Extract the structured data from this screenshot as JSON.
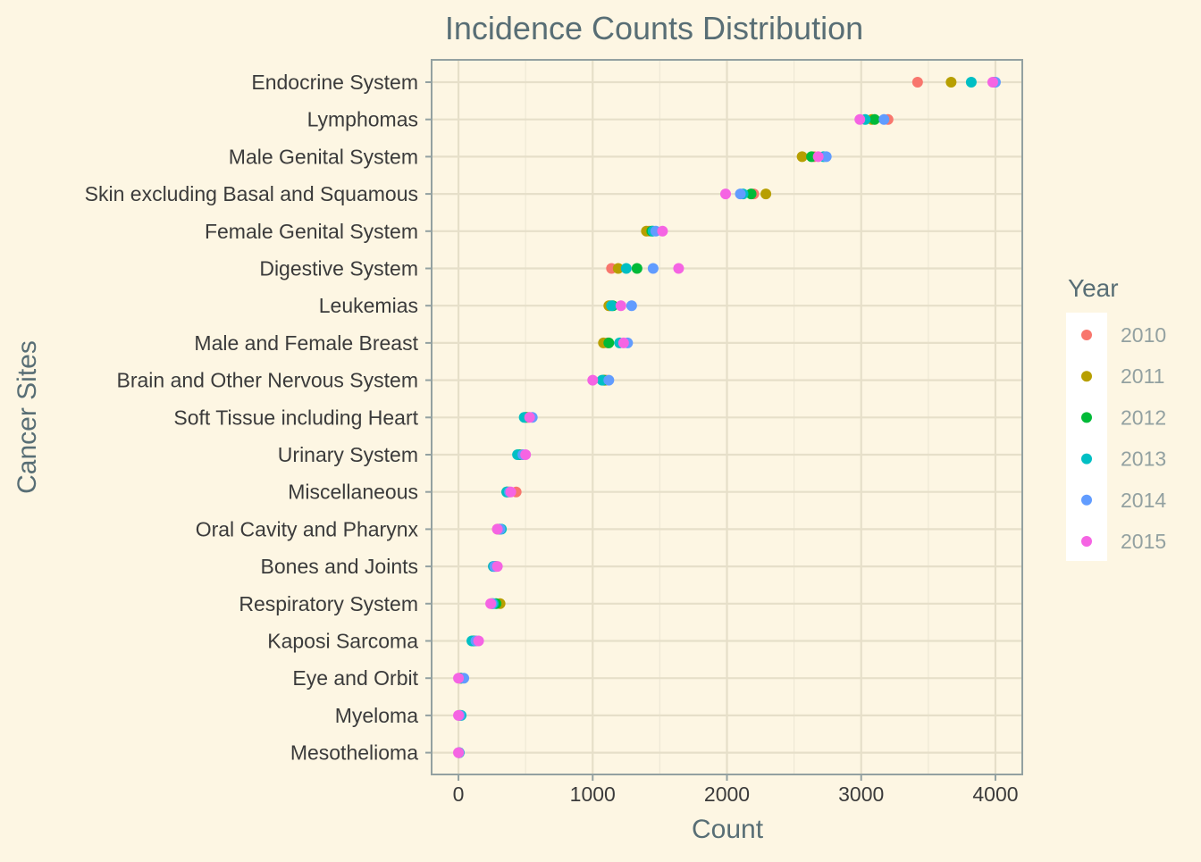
{
  "chart_data": {
    "type": "scatter",
    "title": "Incidence Counts Distribution",
    "xlabel": "Count",
    "ylabel": "Cancer Sites",
    "xlim": [
      -200,
      4200
    ],
    "xticks": [
      0,
      1000,
      2000,
      3000,
      4000
    ],
    "grid": true,
    "legend": {
      "title": "Year",
      "placement": "right"
    },
    "categories": [
      "Endocrine System",
      "Lymphomas",
      "Male Genital System",
      "Skin excluding Basal and Squamous",
      "Female Genital System",
      "Digestive System",
      "Leukemias",
      "Male and Female Breast",
      "Brain and Other Nervous System",
      "Soft Tissue including Heart",
      "Urinary System",
      "Miscellaneous",
      "Oral Cavity and Pharynx",
      "Bones and Joints",
      "Respiratory System",
      "Kaposi Sarcoma",
      "Eye and Orbit",
      "Myeloma",
      "Mesothelioma"
    ],
    "series": [
      {
        "name": "2010",
        "color": "#f8766d",
        "values": [
          3420,
          3200,
          2650,
          2200,
          1420,
          1140,
          1130,
          1110,
          1100,
          520,
          470,
          430,
          290,
          260,
          250,
          110,
          10,
          10,
          5
        ]
      },
      {
        "name": "2011",
        "color": "#b79f00",
        "values": [
          3670,
          3080,
          2560,
          2290,
          1400,
          1190,
          1120,
          1080,
          1090,
          510,
          460,
          370,
          300,
          270,
          310,
          120,
          15,
          15,
          5
        ]
      },
      {
        "name": "2012",
        "color": "#00ba38",
        "values": [
          3990,
          3100,
          2630,
          2180,
          1440,
          1330,
          1150,
          1120,
          1080,
          500,
          450,
          360,
          310,
          280,
          280,
          110,
          20,
          10,
          5
        ]
      },
      {
        "name": "2013",
        "color": "#00bfc4",
        "values": [
          3820,
          3030,
          2720,
          2120,
          1450,
          1250,
          1140,
          1200,
          1070,
          490,
          440,
          360,
          320,
          260,
          260,
          100,
          20,
          20,
          5
        ]
      },
      {
        "name": "2014",
        "color": "#619cff",
        "values": [
          4000,
          3170,
          2740,
          2100,
          1470,
          1450,
          1290,
          1260,
          1120,
          550,
          480,
          380,
          310,
          270,
          250,
          130,
          40,
          10,
          5
        ]
      },
      {
        "name": "2015",
        "color": "#f564e3",
        "values": [
          3980,
          2990,
          2680,
          1990,
          1520,
          1640,
          1210,
          1230,
          1000,
          530,
          500,
          390,
          290,
          290,
          240,
          150,
          0,
          0,
          0
        ]
      }
    ]
  }
}
